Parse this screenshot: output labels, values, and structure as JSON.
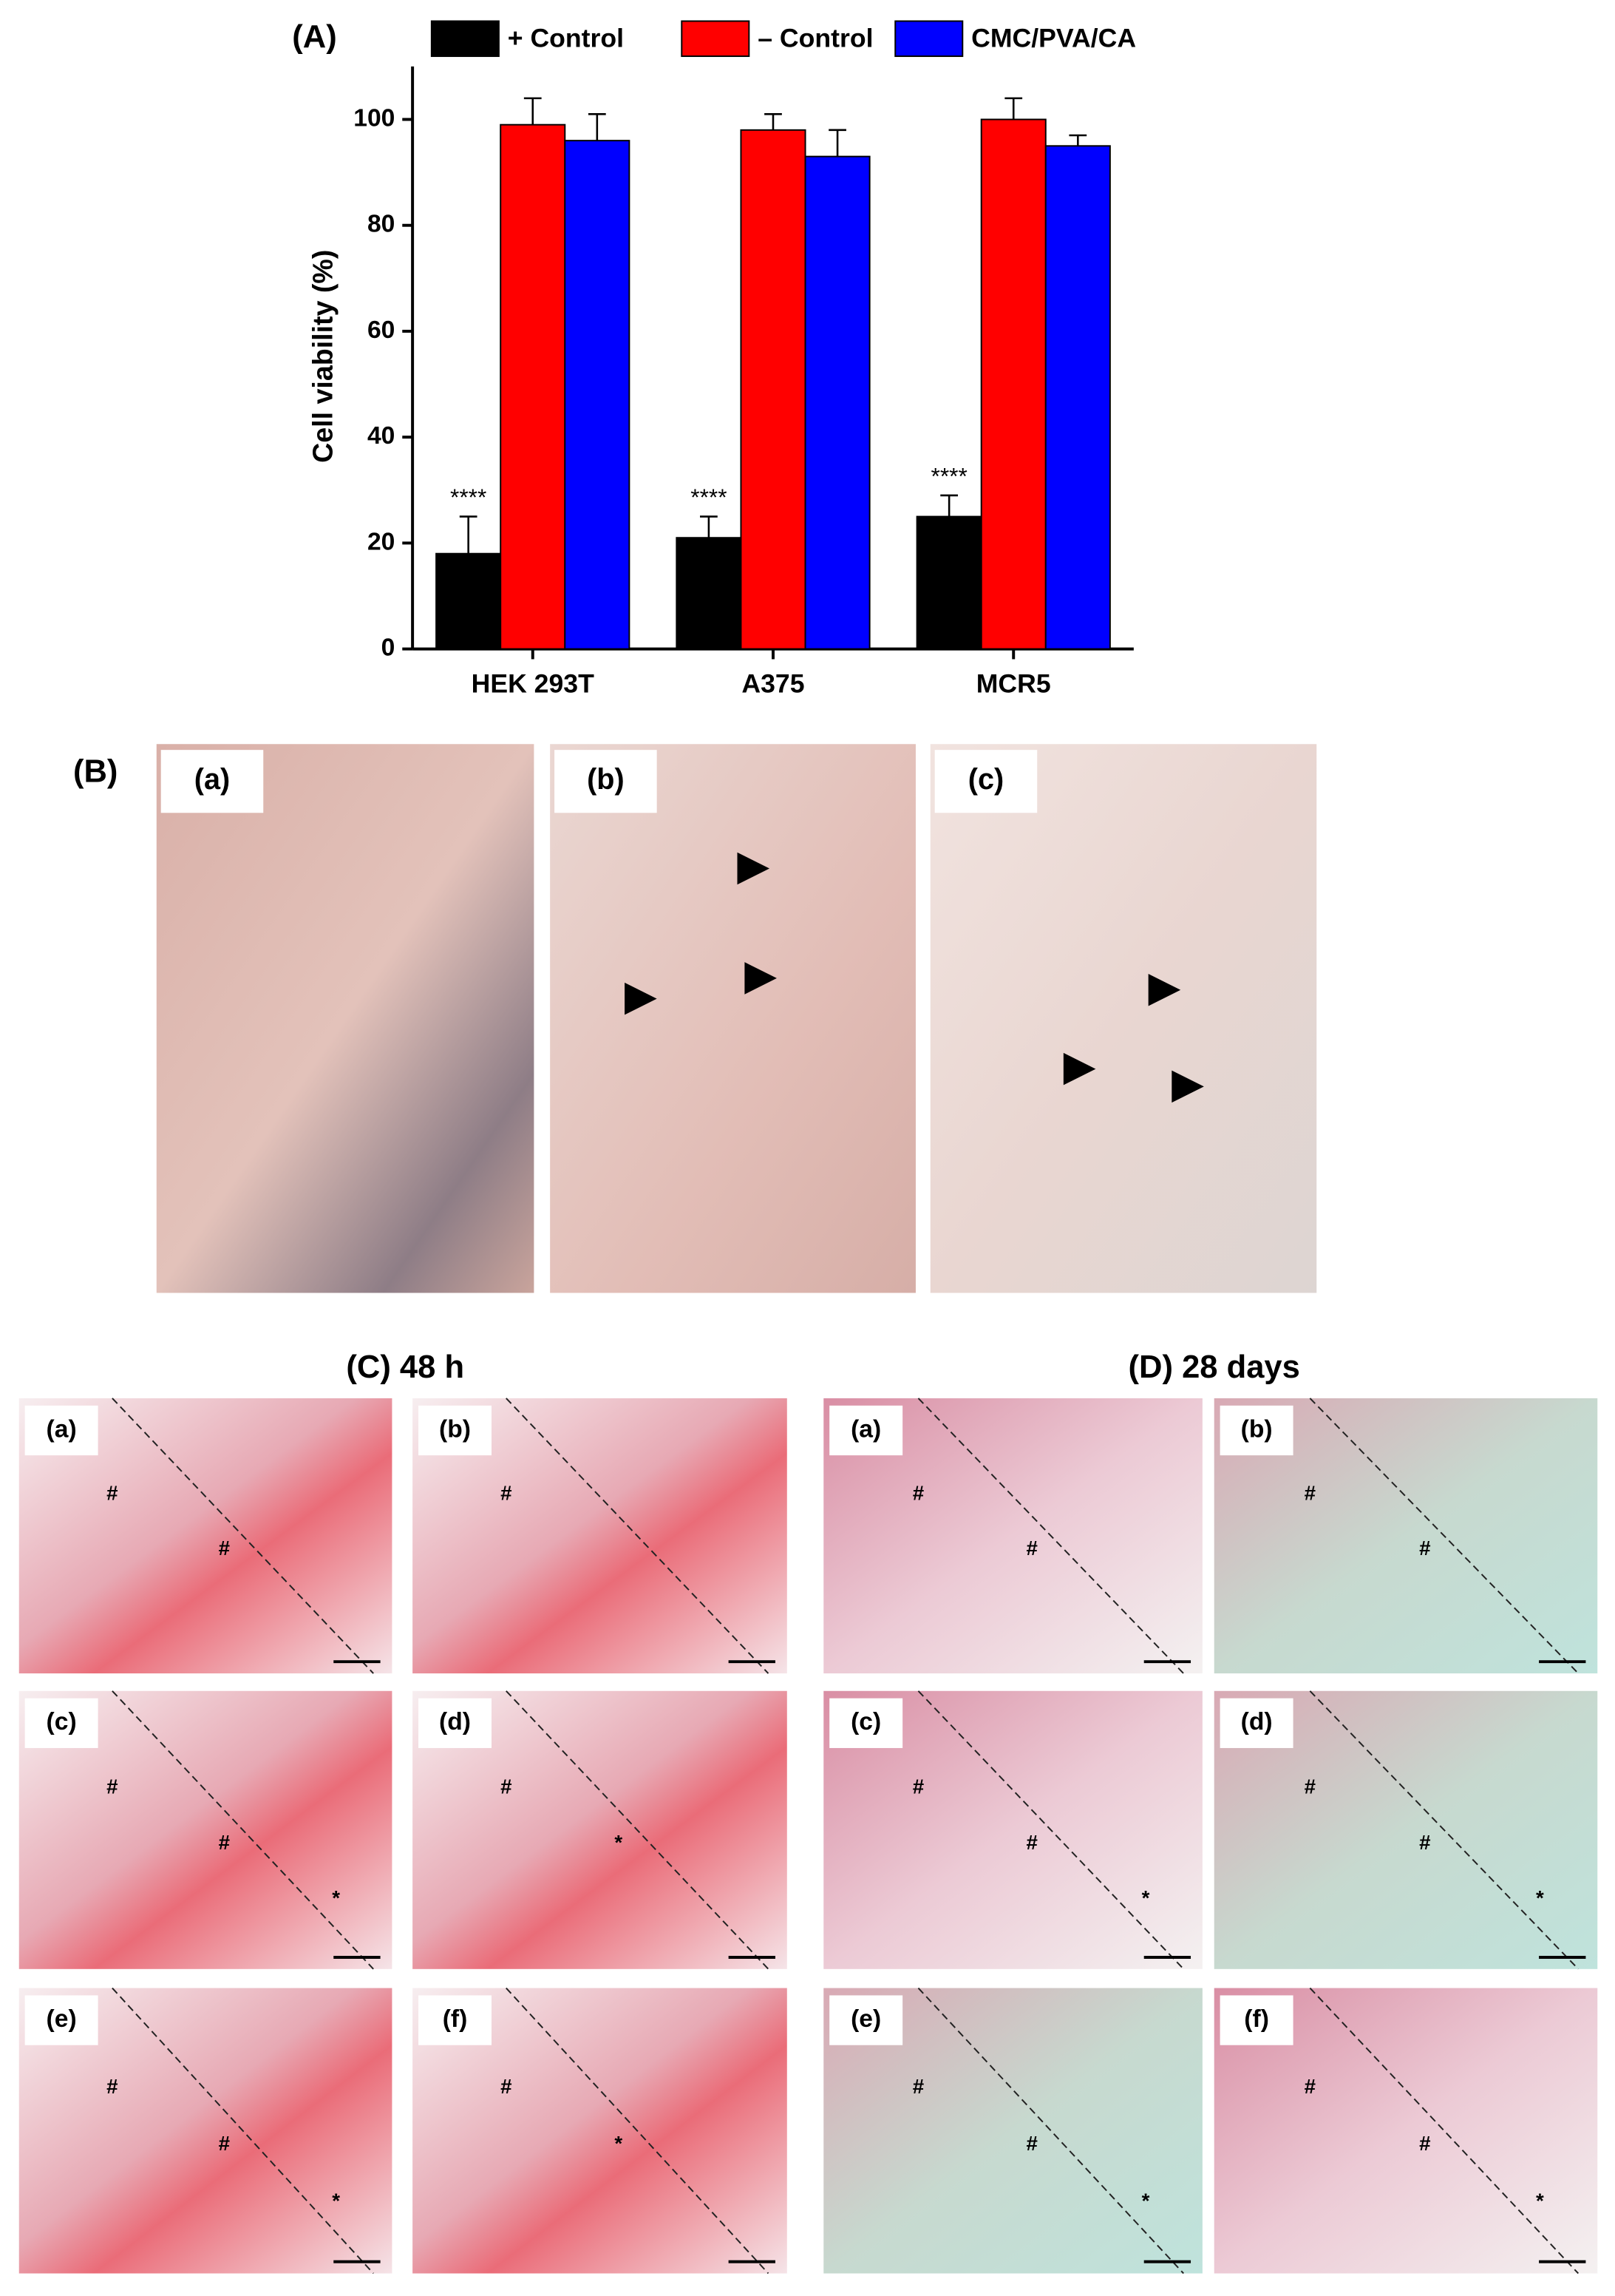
{
  "chart_data": {
    "type": "bar",
    "title": "(A)",
    "y_label": "Cell viability (%)",
    "categories": [
      "HEK 293T",
      "A375",
      "MCR5"
    ],
    "series": [
      {
        "name": "+ Control",
        "color": "#000000",
        "values": [
          18,
          21,
          25
        ],
        "errors": [
          7,
          4,
          4
        ],
        "annotations": [
          "****",
          "****",
          "****"
        ]
      },
      {
        "name": "– Control",
        "color": "#ff0000",
        "values": [
          99,
          98,
          100
        ],
        "errors": [
          5,
          3,
          4
        ]
      },
      {
        "name": "CMC/PVA/CA",
        "color": "#0000ff",
        "values": [
          96,
          93,
          95
        ],
        "errors": [
          5,
          5,
          2
        ]
      }
    ],
    "ylim": [
      0,
      110
    ],
    "yticks": [
      0,
      20,
      40,
      60,
      80,
      100
    ],
    "grid": false,
    "legend": "top"
  },
  "panels": {
    "B": {
      "title": "(B)",
      "images": [
        {
          "label": "(a)"
        },
        {
          "label": "(b)"
        },
        {
          "label": "(c)"
        }
      ]
    },
    "C": {
      "title": "(C) 48 h",
      "images": [
        {
          "label": "(a)",
          "symbols": [
            "#",
            "#"
          ]
        },
        {
          "label": "(b)",
          "symbols": [
            "#"
          ]
        },
        {
          "label": "(c)",
          "symbols": [
            "#",
            "#",
            "*"
          ]
        },
        {
          "label": "(d)",
          "symbols": [
            "#",
            "*"
          ]
        },
        {
          "label": "(e)",
          "symbols": [
            "#",
            "#",
            "*"
          ]
        },
        {
          "label": "(f)",
          "symbols": [
            "#",
            "*"
          ]
        }
      ]
    },
    "D": {
      "title": "(D) 28 days",
      "images": [
        {
          "label": "(a)",
          "symbols": [
            "#",
            "#"
          ]
        },
        {
          "label": "(b)",
          "symbols": [
            "#",
            "#"
          ]
        },
        {
          "label": "(c)",
          "symbols": [
            "#",
            "#",
            "*"
          ]
        },
        {
          "label": "(d)",
          "symbols": [
            "#",
            "#",
            "*"
          ]
        },
        {
          "label": "(e)",
          "symbols": [
            "#",
            "#",
            "*"
          ]
        },
        {
          "label": "(f)",
          "symbols": [
            "#",
            "#",
            "*"
          ]
        }
      ]
    }
  }
}
